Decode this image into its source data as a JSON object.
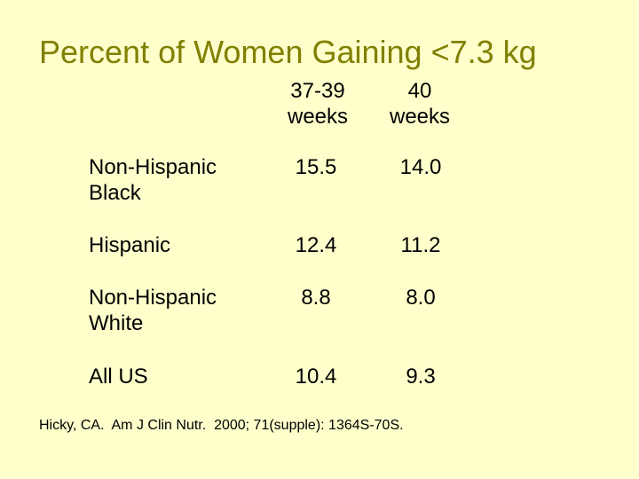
{
  "slide": {
    "title": "Percent of Women Gaining <7.3 kg",
    "background_color": "#ffffcc",
    "title_color": "#808000"
  },
  "table": {
    "columns": [
      "37-39\nweeks",
      "40\nweeks"
    ],
    "rows": [
      {
        "label": "Non-Hispanic\nBlack",
        "values": [
          "15.5",
          "14.0"
        ]
      },
      {
        "label": "Hispanic",
        "values": [
          "12.4",
          "11.2"
        ]
      },
      {
        "label": "Non-Hispanic\nWhite",
        "values": [
          "8.8",
          "8.0"
        ]
      },
      {
        "label": "All US",
        "values": [
          "10.4",
          "9.3"
        ]
      }
    ]
  },
  "citation": "Hicky, CA.  Am J Clin Nutr.  2000; 71(supple): 1364S-70S."
}
